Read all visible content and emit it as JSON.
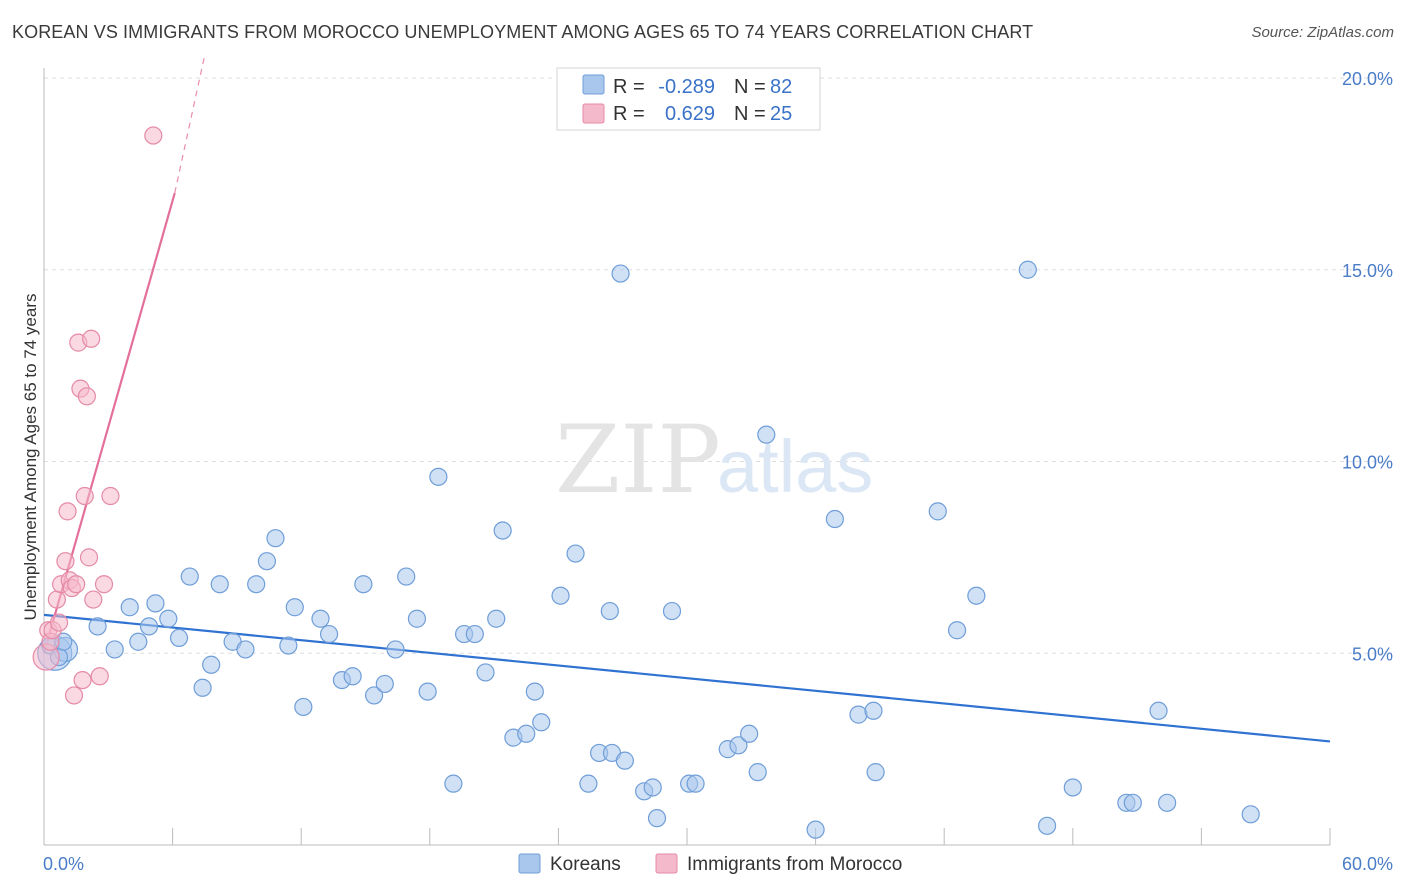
{
  "title": "KOREAN VS IMMIGRANTS FROM MOROCCO UNEMPLOYMENT AMONG AGES 65 TO 74 YEARS CORRELATION CHART",
  "source": "Source: ZipAtlas.com",
  "watermark": {
    "bold": "ZIP",
    "light": "atlas"
  },
  "colors": {
    "blue_fill": "#a9c6ec",
    "blue_stroke": "#6f9ed8",
    "blue_line": "#2f72d1",
    "pink_fill": "#f5b9cc",
    "pink_stroke": "#e58aa6",
    "pink_line": "#e3709a",
    "axis_text": "#4a7cc7",
    "grid": "#dddddd"
  },
  "legend": {
    "rows": [
      {
        "r_label": "R = ",
        "r_value": "-0.289",
        "n_label": "N = ",
        "n_value": "82"
      },
      {
        "r_label": "R = ",
        "r_value": "0.629",
        "n_label": "N = ",
        "n_value": "25"
      }
    ]
  },
  "bottom_legend": {
    "series1": "Koreans",
    "series2": "Immigrants from Morocco"
  },
  "chart_data": {
    "type": "scatter",
    "title": "KOREAN VS IMMIGRANTS FROM MOROCCO UNEMPLOYMENT AMONG AGES 65 TO 74 YEARS CORRELATION CHART",
    "xlabel": "",
    "ylabel": "Unemployment Among Ages 65 to 74 years",
    "xlim": [
      0,
      60
    ],
    "ylim": [
      0,
      20
    ],
    "x_tick_labels": [
      "0.0%",
      "60.0%"
    ],
    "y_tick_values": [
      5,
      10,
      15,
      20
    ],
    "y_tick_labels": [
      "5.0%",
      "10.0%",
      "15.0%",
      "20.0%"
    ],
    "series": [
      {
        "name": "Koreans",
        "points": [
          [
            0.5,
            5.0
          ],
          [
            1.0,
            5.1
          ],
          [
            0.3,
            5.2
          ],
          [
            2.5,
            5.7
          ],
          [
            3.3,
            5.1
          ],
          [
            4.0,
            6.2
          ],
          [
            4.4,
            5.3
          ],
          [
            4.9,
            5.7
          ],
          [
            5.2,
            6.3
          ],
          [
            5.8,
            5.9
          ],
          [
            6.3,
            5.4
          ],
          [
            6.8,
            7.0
          ],
          [
            7.4,
            4.1
          ],
          [
            7.8,
            4.7
          ],
          [
            8.2,
            6.8
          ],
          [
            8.8,
            5.3
          ],
          [
            9.4,
            5.1
          ],
          [
            9.9,
            6.8
          ],
          [
            10.4,
            7.4
          ],
          [
            10.8,
            8.0
          ],
          [
            11.4,
            5.2
          ],
          [
            11.7,
            6.2
          ],
          [
            12.1,
            3.6
          ],
          [
            12.9,
            5.9
          ],
          [
            13.3,
            5.5
          ],
          [
            13.9,
            4.3
          ],
          [
            14.4,
            4.4
          ],
          [
            14.9,
            6.8
          ],
          [
            15.4,
            3.9
          ],
          [
            15.9,
            4.2
          ],
          [
            16.4,
            5.1
          ],
          [
            16.9,
            7.0
          ],
          [
            17.4,
            5.9
          ],
          [
            17.9,
            4.0
          ],
          [
            18.4,
            9.6
          ],
          [
            19.1,
            1.6
          ],
          [
            19.6,
            5.5
          ],
          [
            20.1,
            5.5
          ],
          [
            20.6,
            4.5
          ],
          [
            21.1,
            5.9
          ],
          [
            21.4,
            8.2
          ],
          [
            21.9,
            2.8
          ],
          [
            22.5,
            2.9
          ],
          [
            23.2,
            3.2
          ],
          [
            22.9,
            4.0
          ],
          [
            24.1,
            6.5
          ],
          [
            24.8,
            7.6
          ],
          [
            25.4,
            1.6
          ],
          [
            25.9,
            2.4
          ],
          [
            26.4,
            6.1
          ],
          [
            26.5,
            2.4
          ],
          [
            27.1,
            2.2
          ],
          [
            26.9,
            14.9
          ],
          [
            28.0,
            1.4
          ],
          [
            28.6,
            0.7
          ],
          [
            28.4,
            1.5
          ],
          [
            29.3,
            6.1
          ],
          [
            30.1,
            1.6
          ],
          [
            30.4,
            1.6
          ],
          [
            31.9,
            2.5
          ],
          [
            32.4,
            2.6
          ],
          [
            32.9,
            2.9
          ],
          [
            33.3,
            1.9
          ],
          [
            33.7,
            10.7
          ],
          [
            36.0,
            0.4
          ],
          [
            36.9,
            8.5
          ],
          [
            38.0,
            3.4
          ],
          [
            38.7,
            3.5
          ],
          [
            38.8,
            1.9
          ],
          [
            41.7,
            8.7
          ],
          [
            42.6,
            5.6
          ],
          [
            43.5,
            6.5
          ],
          [
            45.9,
            15.0
          ],
          [
            46.8,
            0.5
          ],
          [
            48.0,
            1.5
          ],
          [
            50.5,
            1.1
          ],
          [
            50.8,
            1.1
          ],
          [
            52.0,
            3.5
          ],
          [
            52.4,
            1.1
          ],
          [
            56.3,
            0.8
          ],
          [
            0.7,
            4.9
          ],
          [
            0.9,
            5.3
          ]
        ],
        "trend": {
          "x": [
            0,
            60
          ],
          "y": [
            6.0,
            2.7
          ]
        }
      },
      {
        "name": "Immigrants from Morocco",
        "points": [
          [
            0.1,
            4.9
          ],
          [
            0.2,
            5.6
          ],
          [
            0.3,
            5.3
          ],
          [
            0.4,
            5.6
          ],
          [
            0.6,
            6.4
          ],
          [
            0.7,
            5.8
          ],
          [
            0.8,
            6.8
          ],
          [
            1.0,
            7.4
          ],
          [
            1.1,
            8.7
          ],
          [
            1.2,
            6.9
          ],
          [
            1.3,
            6.7
          ],
          [
            1.4,
            3.9
          ],
          [
            1.5,
            6.8
          ],
          [
            1.6,
            13.1
          ],
          [
            1.7,
            11.9
          ],
          [
            1.8,
            4.3
          ],
          [
            1.9,
            9.1
          ],
          [
            2.0,
            11.7
          ],
          [
            2.1,
            7.5
          ],
          [
            2.2,
            13.2
          ],
          [
            2.3,
            6.4
          ],
          [
            2.6,
            4.4
          ],
          [
            2.8,
            6.8
          ],
          [
            3.1,
            9.1
          ],
          [
            5.1,
            18.5
          ]
        ],
        "trend": {
          "x": [
            0,
            6.1
          ],
          "y": [
            5.0,
            17.0
          ]
        },
        "trend_ext": {
          "x": [
            6.1,
            7.5
          ],
          "y": [
            17.0,
            20.6
          ]
        }
      }
    ]
  }
}
